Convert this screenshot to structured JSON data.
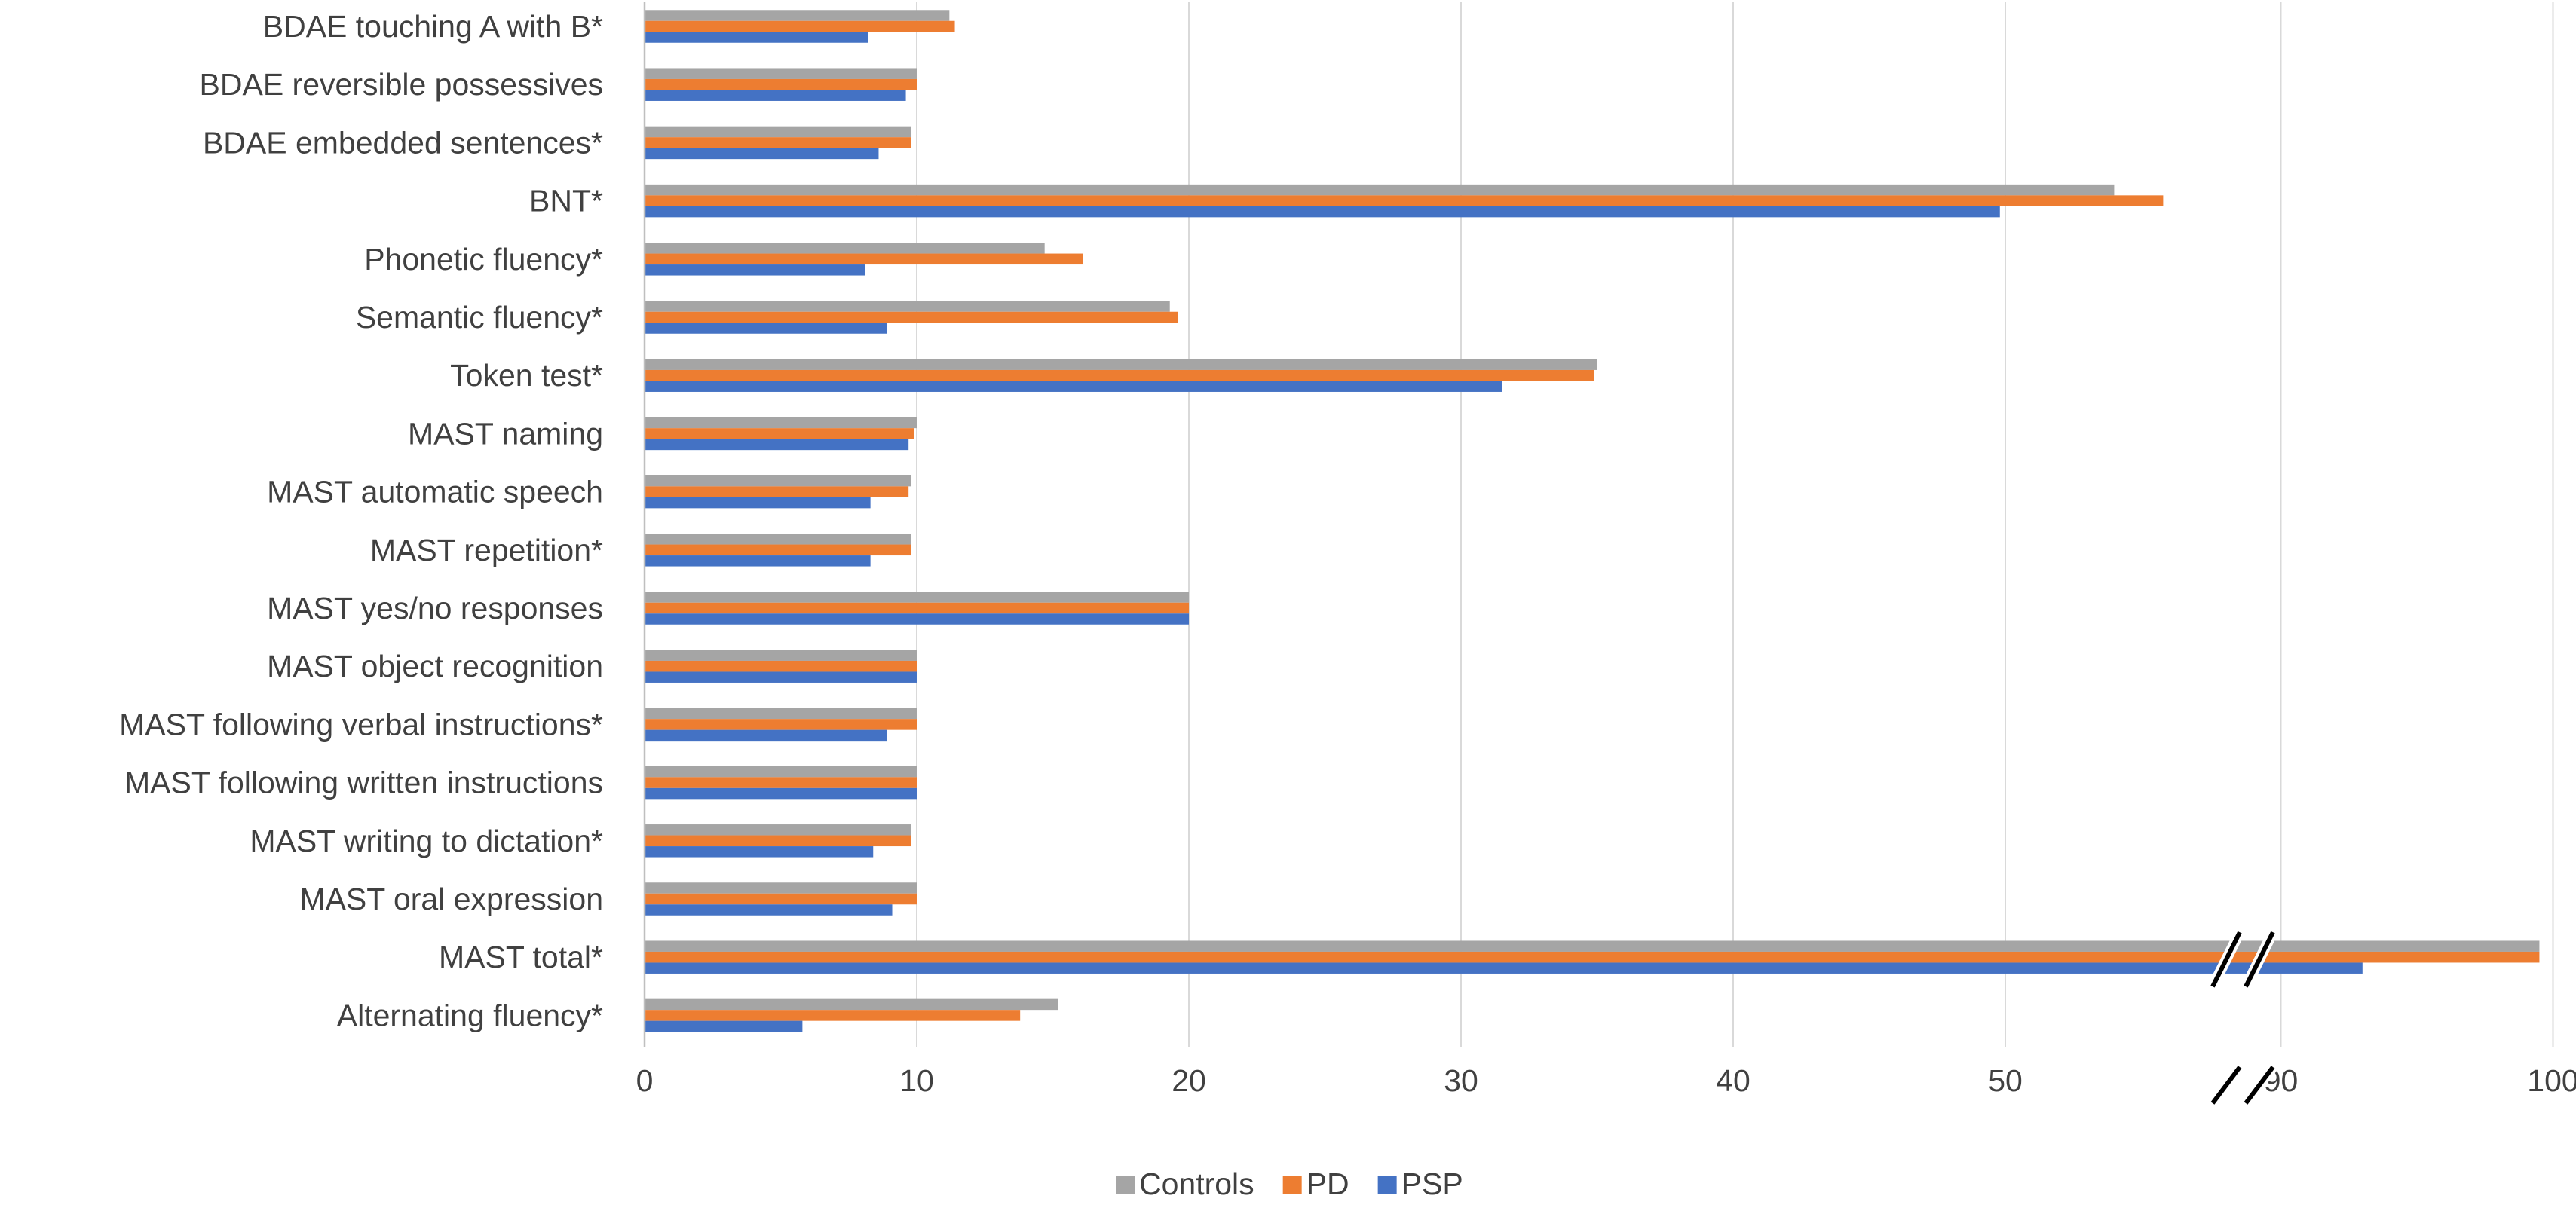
{
  "chart_data": {
    "type": "bar",
    "orientation": "horizontal",
    "title": "",
    "xlabel": "",
    "ylabel": "",
    "categories": [
      "BDAE touching A with B*",
      "BDAE reversible possessives",
      "BDAE embedded sentences*",
      "BNT*",
      "Phonetic fluency*",
      "Semantic fluency*",
      "Token test*",
      "MAST naming",
      "MAST automatic speech",
      "MAST repetition*",
      "MAST yes/no responses",
      "MAST object recognition",
      "MAST following verbal instructions*",
      "MAST following written instructions",
      "MAST writing to dictation*",
      "MAST oral expression",
      "MAST total*",
      "Alternating fluency*"
    ],
    "series": [
      {
        "name": "Controls",
        "color": "#a5a5a5",
        "values": [
          11.2,
          10.0,
          9.8,
          54.0,
          14.7,
          19.3,
          35.0,
          10.0,
          9.8,
          9.8,
          20.0,
          10.0,
          10.0,
          10.0,
          9.8,
          10.0,
          99.5,
          15.2
        ]
      },
      {
        "name": "PD",
        "color": "#ed7d31",
        "values": [
          11.4,
          10.0,
          9.8,
          55.8,
          16.1,
          19.6,
          34.9,
          9.9,
          9.7,
          9.8,
          20.0,
          10.0,
          10.0,
          10.0,
          9.8,
          10.0,
          99.5,
          13.8
        ]
      },
      {
        "name": "PSP",
        "color": "#4472c4",
        "values": [
          8.2,
          9.6,
          8.6,
          49.8,
          8.1,
          8.9,
          31.5,
          9.7,
          8.3,
          8.3,
          20.0,
          10.0,
          8.9,
          10.0,
          8.4,
          9.1,
          93.0,
          5.8
        ]
      }
    ],
    "x_ticks": [
      "0",
      "10",
      "20",
      "30",
      "40",
      "50",
      "90",
      "100"
    ],
    "xlim": [
      0,
      100
    ],
    "axis_break": {
      "from": 56,
      "to": 86
    },
    "grid": true,
    "legend": {
      "position": "bottom"
    },
    "gridline_color": "#d9d9d9",
    "axis_line_color": "#bfbfbf"
  }
}
